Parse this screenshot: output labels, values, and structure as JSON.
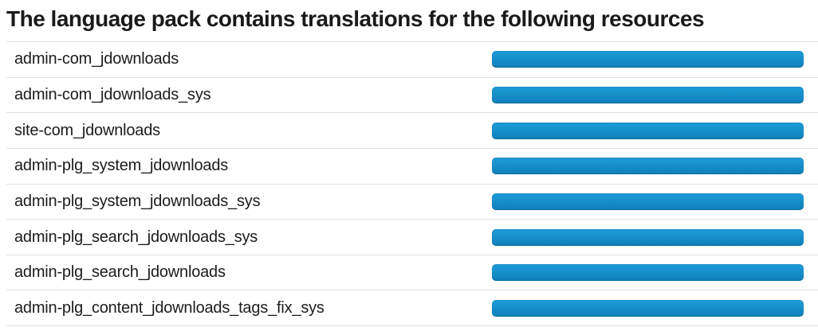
{
  "header": {
    "title": "The language pack contains translations for the following resources"
  },
  "colors": {
    "title_color": "#1a1a1a",
    "label_color": "#1c1c1c",
    "divider_color": "#e2e2e2",
    "bar_gradient_top": "#1e9cd8",
    "bar_gradient_bottom": "#0f80b9"
  },
  "resource_table": {
    "rows": [
      {
        "label": "admin-com_jdownloads",
        "progress_percent": 100
      },
      {
        "label": "admin-com_jdownloads_sys",
        "progress_percent": 100
      },
      {
        "label": "site-com_jdownloads",
        "progress_percent": 100
      },
      {
        "label": "admin-plg_system_jdownloads",
        "progress_percent": 100
      },
      {
        "label": "admin-plg_system_jdownloads_sys",
        "progress_percent": 100
      },
      {
        "label": "admin-plg_search_jdownloads_sys",
        "progress_percent": 100
      },
      {
        "label": "admin-plg_search_jdownloads",
        "progress_percent": 100
      },
      {
        "label": "admin-plg_content_jdownloads_tags_fix_sys",
        "progress_percent": 100
      }
    ]
  }
}
